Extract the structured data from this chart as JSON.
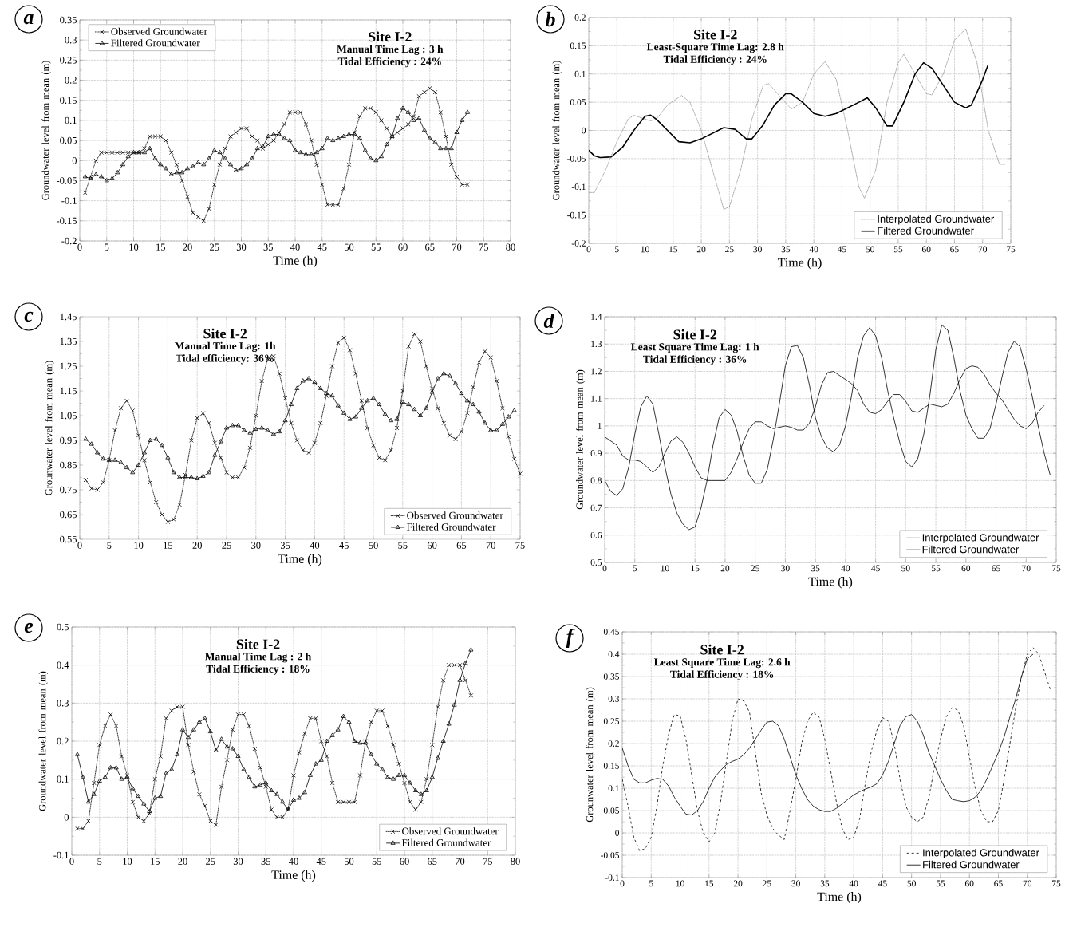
{
  "chart_data": [
    {
      "type": "line",
      "title": "Site I-2",
      "xlabel": "Time (h)",
      "ylabel": "Groundwater level from mean (m)",
      "annotations": [
        "a",
        "Manual Time Lag : 3 h",
        "Tidal Efficiency : 24%"
      ],
      "xlim": [
        0,
        80
      ],
      "ylim": [
        -0.2,
        0.35
      ],
      "xticks": [
        0,
        5,
        10,
        15,
        20,
        25,
        30,
        35,
        40,
        45,
        50,
        55,
        60,
        65,
        70,
        75,
        80
      ],
      "yticks": [
        -0.2,
        -0.15,
        -0.1,
        -0.05,
        0,
        0.05,
        0.1,
        0.15,
        0.2,
        0.25,
        0.3,
        0.35
      ],
      "grid": true,
      "legend": "top left",
      "x": [
        1,
        2,
        3,
        4,
        5,
        6,
        7,
        8,
        9,
        10,
        11,
        12,
        13,
        14,
        15,
        16,
        17,
        18,
        19,
        20,
        21,
        22,
        23,
        24,
        25,
        26,
        27,
        28,
        29,
        30,
        31,
        32,
        33,
        34,
        35,
        36,
        37,
        38,
        39,
        40,
        41,
        42,
        43,
        44,
        45,
        46,
        47,
        48,
        49,
        50,
        51,
        52,
        53,
        54,
        55,
        56,
        57,
        58,
        59,
        60,
        61,
        62,
        63,
        64,
        65,
        66,
        67,
        68,
        69,
        70,
        71,
        72
      ],
      "series": [
        {
          "name": "Observed Groundwater",
          "color": "#000000",
          "marker": "cross",
          "line_style": "dotted",
          "values": [
            -0.08,
            -0.04,
            0.0,
            0.02,
            0.02,
            0.02,
            0.02,
            0.02,
            0.02,
            0.02,
            0.02,
            0.03,
            0.06,
            0.06,
            0.06,
            0.05,
            0.02,
            -0.01,
            -0.05,
            -0.09,
            -0.13,
            -0.14,
            -0.15,
            -0.12,
            -0.06,
            -0.01,
            0.03,
            0.06,
            0.07,
            0.08,
            0.08,
            0.06,
            0.05,
            0.03,
            0.04,
            0.05,
            0.07,
            0.09,
            0.12,
            0.12,
            0.12,
            0.09,
            0.05,
            -0.01,
            -0.06,
            -0.11,
            -0.11,
            -0.11,
            -0.07,
            -0.01,
            0.07,
            0.11,
            0.13,
            0.13,
            0.12,
            0.1,
            0.08,
            0.06,
            0.07,
            0.08,
            0.09,
            0.11,
            0.16,
            0.17,
            0.18,
            0.17,
            0.12,
            0.06,
            -0.01,
            -0.04,
            -0.06,
            -0.06
          ]
        },
        {
          "name": "Filtered Groundwater",
          "color": "#000000",
          "marker": "triangle",
          "line_style": "solid",
          "values": [
            -0.04,
            -0.045,
            -0.035,
            -0.04,
            -0.05,
            -0.045,
            -0.03,
            -0.01,
            0.01,
            0.02,
            0.02,
            0.02,
            0.03,
            0.005,
            -0.01,
            -0.02,
            -0.035,
            -0.03,
            -0.03,
            -0.02,
            -0.015,
            -0.005,
            -0.01,
            0.005,
            0.025,
            0.02,
            0.005,
            -0.01,
            -0.025,
            -0.02,
            -0.01,
            0.005,
            0.03,
            0.035,
            0.06,
            0.065,
            0.065,
            0.055,
            0.05,
            0.025,
            0.02,
            0.015,
            0.015,
            0.02,
            0.03,
            0.055,
            0.05,
            0.055,
            0.06,
            0.065,
            0.065,
            0.055,
            0.025,
            0.005,
            0.0,
            0.01,
            0.04,
            0.06,
            0.105,
            0.13,
            0.12,
            0.1,
            0.105,
            0.075,
            0.055,
            0.045,
            0.03,
            0.03,
            0.03,
            0.07,
            0.1,
            0.12
          ]
        }
      ]
    },
    {
      "type": "line",
      "title": "Site I-2",
      "xlabel": "Time (h)",
      "ylabel": "Groundwater level from mean (m)",
      "annotations": [
        "b",
        "Least-Square Time Lag: 2.8 h",
        "Tidal Efficiency : 24%"
      ],
      "xlim": [
        0,
        75
      ],
      "ylim": [
        -0.2,
        0.2
      ],
      "xticks": [
        0,
        5,
        10,
        15,
        20,
        25,
        30,
        35,
        40,
        45,
        50,
        55,
        60,
        65,
        70,
        75
      ],
      "yticks": [
        -0.2,
        -0.15,
        -0.1,
        -0.05,
        0,
        0.05,
        0.1,
        0.15,
        0.2
      ],
      "grid": true,
      "legend": "bottom right",
      "series": [
        {
          "name": "Interpolated Groundwater",
          "color": "#8c8c8c",
          "marker": "none",
          "line_style": "dotted",
          "x": [
            0,
            1,
            3,
            5,
            7,
            8,
            10,
            11,
            12,
            14,
            16.5,
            18,
            20,
            22,
            24,
            25,
            27,
            29,
            31,
            32,
            34,
            36,
            38,
            40,
            42,
            44,
            46,
            48,
            49,
            51,
            53,
            55,
            56,
            58,
            60,
            61,
            63,
            65,
            67,
            69,
            71,
            73,
            74
          ],
          "values": [
            -0.11,
            -0.11,
            -0.07,
            -0.02,
            0.02,
            0.027,
            0.02,
            0.017,
            0.02,
            0.045,
            0.062,
            0.05,
            0.0,
            -0.07,
            -0.14,
            -0.135,
            -0.07,
            0.02,
            0.08,
            0.083,
            0.06,
            0.038,
            0.05,
            0.1,
            0.122,
            0.09,
            0.0,
            -0.1,
            -0.12,
            -0.07,
            0.05,
            0.12,
            0.135,
            0.1,
            0.065,
            0.063,
            0.1,
            0.16,
            0.18,
            0.12,
            0.0,
            -0.06,
            -0.06
          ]
        },
        {
          "name": "Filtered Groundwater",
          "color": "#000000",
          "marker": "none",
          "line_style": "solid",
          "x": [
            0,
            1,
            2,
            4,
            6,
            8,
            10,
            11,
            12,
            14,
            16,
            18,
            20,
            22,
            24,
            26,
            28,
            29,
            31,
            33,
            35,
            36,
            38,
            40,
            42,
            44,
            46,
            48,
            49.5,
            51,
            53,
            54,
            56,
            58,
            59.5,
            61,
            63,
            65,
            67,
            68,
            70,
            71
          ],
          "values": [
            -0.035,
            -0.045,
            -0.048,
            -0.047,
            -0.03,
            0.0,
            0.025,
            0.027,
            0.02,
            0.0,
            -0.02,
            -0.022,
            -0.015,
            -0.005,
            0.005,
            0.002,
            -0.015,
            -0.015,
            0.01,
            0.045,
            0.065,
            0.065,
            0.05,
            0.03,
            0.025,
            0.03,
            0.04,
            0.05,
            0.058,
            0.04,
            0.008,
            0.008,
            0.05,
            0.1,
            0.12,
            0.11,
            0.08,
            0.05,
            0.04,
            0.045,
            0.09,
            0.117
          ]
        }
      ]
    },
    {
      "type": "line",
      "title": "Site I-2",
      "xlabel": "Time (h)",
      "ylabel": "Grounwater level from mean (m)",
      "annotations": [
        "c",
        "Manual Time Lag: 1h",
        "Tidal efficiency: 36%"
      ],
      "xlim": [
        0,
        75
      ],
      "ylim": [
        0.55,
        1.45
      ],
      "xticks": [
        0,
        5,
        10,
        15,
        20,
        25,
        30,
        35,
        40,
        45,
        50,
        55,
        60,
        65,
        70,
        75
      ],
      "yticks": [
        0.55,
        0.65,
        0.75,
        0.85,
        0.95,
        1.05,
        1.15,
        1.25,
        1.35,
        1.45
      ],
      "grid": "x",
      "legend": "bottom right",
      "series": [
        {
          "name": "Observed Groundwater",
          "color": "#000000",
          "marker": "cross",
          "line_style": "dotted",
          "x": [
            1,
            2,
            3,
            4,
            5,
            6,
            7,
            8,
            9,
            10,
            11,
            12,
            13,
            14,
            15,
            16,
            17,
            18,
            19,
            20,
            21,
            22,
            23,
            24,
            25,
            26,
            27,
            28,
            29,
            30,
            31,
            32,
            33,
            34,
            35,
            36,
            37,
            38,
            39,
            40,
            41,
            42,
            43,
            44,
            45,
            46,
            47,
            48,
            49,
            50,
            51,
            52,
            53,
            54,
            55,
            56,
            57,
            58,
            59,
            60,
            61,
            62,
            63,
            64,
            65,
            66,
            67,
            68,
            69,
            70,
            71,
            72,
            73,
            74,
            75
          ],
          "values": [
            0.79,
            0.755,
            0.75,
            0.78,
            0.87,
            0.99,
            1.08,
            1.11,
            1.07,
            0.97,
            0.87,
            0.78,
            0.7,
            0.65,
            0.62,
            0.63,
            0.69,
            0.81,
            0.95,
            1.04,
            1.06,
            1.02,
            0.94,
            0.88,
            0.82,
            0.8,
            0.8,
            0.84,
            0.92,
            1.05,
            1.19,
            1.28,
            1.29,
            1.22,
            1.12,
            1.02,
            0.95,
            0.91,
            0.9,
            0.94,
            1.02,
            1.13,
            1.25,
            1.345,
            1.365,
            1.315,
            1.22,
            1.11,
            1.0,
            0.93,
            0.88,
            0.87,
            0.91,
            1.0,
            1.15,
            1.33,
            1.38,
            1.35,
            1.25,
            1.16,
            1.08,
            1.02,
            0.97,
            0.955,
            0.985,
            1.06,
            1.165,
            1.265,
            1.31,
            1.285,
            1.19,
            1.08,
            0.965,
            0.875,
            0.815
          ]
        },
        {
          "name": "Filtered Groundwater",
          "color": "#000000",
          "marker": "triangle",
          "line_style": "solid",
          "x": [
            1,
            2,
            3,
            4,
            5,
            6,
            7,
            8,
            9,
            10,
            11,
            12,
            13,
            14,
            15,
            16,
            17,
            18,
            19,
            20,
            21,
            22,
            23,
            24,
            25,
            26,
            27,
            28,
            29,
            30,
            31,
            32,
            33,
            34,
            35,
            36,
            37,
            38,
            39,
            40,
            41,
            42,
            43,
            44,
            45,
            46,
            47,
            48,
            49,
            50,
            51,
            52,
            53,
            54,
            55,
            56,
            57,
            58,
            59,
            60,
            61,
            62,
            63,
            64,
            65,
            66,
            67,
            68,
            69,
            70,
            71,
            72,
            73,
            74
          ],
          "values": [
            0.955,
            0.935,
            0.9,
            0.875,
            0.87,
            0.87,
            0.86,
            0.84,
            0.82,
            0.85,
            0.9,
            0.95,
            0.955,
            0.93,
            0.88,
            0.82,
            0.8,
            0.8,
            0.8,
            0.795,
            0.805,
            0.82,
            0.89,
            0.945,
            1.0,
            1.01,
            1.01,
            0.99,
            0.98,
            0.995,
            1.0,
            0.99,
            0.975,
            0.985,
            1.03,
            1.095,
            1.16,
            1.19,
            1.2,
            1.185,
            1.16,
            1.14,
            1.13,
            1.09,
            1.06,
            1.035,
            1.045,
            1.08,
            1.11,
            1.12,
            1.095,
            1.055,
            1.03,
            1.035,
            1.105,
            1.095,
            1.075,
            1.05,
            1.08,
            1.145,
            1.2,
            1.22,
            1.21,
            1.18,
            1.14,
            1.11,
            1.095,
            1.065,
            1.02,
            0.99,
            0.99,
            1.015,
            1.045,
            1.07
          ]
        }
      ]
    },
    {
      "type": "line",
      "title": "Site I-2",
      "xlabel": "Time (h)",
      "ylabel": "Groundwater level from mean (m)",
      "annotations": [
        "d",
        "Least Square Time Lag: 1 h",
        "Tidal Efficiency : 36%"
      ],
      "xlim": [
        0,
        75
      ],
      "ylim": [
        0.5,
        1.4
      ],
      "xticks": [
        0,
        5,
        10,
        15,
        20,
        25,
        30,
        35,
        40,
        45,
        50,
        55,
        60,
        65,
        70,
        75
      ],
      "yticks": [
        0.5,
        0.6,
        0.7,
        0.8,
        0.9,
        1,
        1.1,
        1.2,
        1.3,
        1.4
      ],
      "grid": true,
      "legend": "bottom right",
      "series": [
        {
          "name": "Interpolated Groundwater",
          "color": "#000000",
          "marker": "none",
          "line_style": "solid",
          "x": [
            0,
            1,
            2,
            3,
            4,
            5,
            6,
            7,
            8,
            9,
            10,
            11,
            12,
            13,
            14,
            15,
            16,
            17,
            18,
            19,
            20,
            21,
            22,
            23,
            24,
            25,
            26,
            27,
            28,
            29,
            30,
            31,
            32,
            33,
            34,
            35,
            36,
            37,
            38,
            39,
            40,
            41,
            42,
            43,
            44,
            45,
            46,
            47,
            48,
            49,
            50,
            51,
            52,
            53,
            54,
            55,
            56,
            57,
            58,
            59,
            60,
            61,
            62,
            63,
            64,
            65,
            66,
            67,
            68,
            69,
            70,
            71,
            72,
            73,
            74
          ],
          "values": [
            0.8,
            0.76,
            0.745,
            0.77,
            0.85,
            0.97,
            1.07,
            1.11,
            1.08,
            0.97,
            0.85,
            0.75,
            0.68,
            0.64,
            0.62,
            0.63,
            0.7,
            0.8,
            0.93,
            1.03,
            1.06,
            1.04,
            0.98,
            0.89,
            0.82,
            0.79,
            0.79,
            0.84,
            0.95,
            1.08,
            1.22,
            1.29,
            1.295,
            1.25,
            1.15,
            1.03,
            0.96,
            0.92,
            0.905,
            0.93,
            1.0,
            1.11,
            1.25,
            1.33,
            1.36,
            1.33,
            1.25,
            1.13,
            1.03,
            0.94,
            0.87,
            0.85,
            0.88,
            0.97,
            1.11,
            1.28,
            1.37,
            1.35,
            1.25,
            1.13,
            1.04,
            0.99,
            0.955,
            0.955,
            0.99,
            1.08,
            1.18,
            1.27,
            1.31,
            1.29,
            1.21,
            1.11,
            1.0,
            0.9,
            0.82
          ]
        },
        {
          "name": "Filtered Groundwater",
          "color": "#000000",
          "marker": "none",
          "line_style": "solid",
          "x": [
            0,
            1,
            2,
            3,
            4,
            5,
            6,
            7,
            8,
            9,
            10,
            11,
            12,
            13,
            14,
            15,
            16,
            17,
            18,
            19,
            20,
            21,
            22,
            23,
            24,
            25,
            26,
            27,
            28,
            29,
            30,
            31,
            32,
            33,
            34,
            35,
            36,
            37,
            38,
            39,
            40,
            41,
            42,
            43,
            44,
            45,
            46,
            47,
            48,
            49,
            50,
            51,
            52,
            53,
            54,
            55,
            56,
            57,
            58,
            59,
            60,
            61,
            62,
            63,
            64,
            65,
            66,
            67,
            68,
            69,
            70,
            71,
            72,
            73
          ],
          "values": [
            0.96,
            0.945,
            0.93,
            0.89,
            0.875,
            0.875,
            0.87,
            0.85,
            0.83,
            0.85,
            0.9,
            0.945,
            0.96,
            0.94,
            0.9,
            0.85,
            0.81,
            0.8,
            0.8,
            0.8,
            0.8,
            0.83,
            0.88,
            0.94,
            0.99,
            1.015,
            1.015,
            1.0,
            0.99,
            0.995,
            1.0,
            0.995,
            0.985,
            0.985,
            1.01,
            1.07,
            1.15,
            1.195,
            1.2,
            1.185,
            1.17,
            1.155,
            1.13,
            1.08,
            1.05,
            1.045,
            1.06,
            1.09,
            1.115,
            1.115,
            1.09,
            1.055,
            1.05,
            1.065,
            1.08,
            1.075,
            1.07,
            1.08,
            1.12,
            1.17,
            1.21,
            1.22,
            1.215,
            1.19,
            1.15,
            1.12,
            1.095,
            1.06,
            1.025,
            1.0,
            0.99,
            1.01,
            1.05,
            1.075
          ]
        }
      ]
    },
    {
      "type": "line",
      "title": "Site I-2",
      "xlabel": "Time (h)",
      "ylabel": "Groundwater level from mean (m)",
      "annotations": [
        "e",
        "Manual Time Lag : 2 h",
        "Tidal Efficiency : 18%"
      ],
      "xlim": [
        0,
        80
      ],
      "ylim": [
        -0.1,
        0.5
      ],
      "xticks": [
        0,
        5,
        10,
        15,
        20,
        25,
        30,
        35,
        40,
        45,
        50,
        55,
        60,
        65,
        70,
        75,
        80
      ],
      "yticks": [
        -0.1,
        0,
        0.1,
        0.2,
        0.3,
        0.4,
        0.5
      ],
      "grid": true,
      "legend": "bottom right",
      "x": [
        1,
        2,
        3,
        4,
        5,
        6,
        7,
        8,
        9,
        10,
        11,
        12,
        13,
        14,
        15,
        16,
        17,
        18,
        19,
        20,
        21,
        22,
        23,
        24,
        25,
        26,
        27,
        28,
        29,
        30,
        31,
        32,
        33,
        34,
        35,
        36,
        37,
        38,
        39,
        40,
        41,
        42,
        43,
        44,
        45,
        46,
        47,
        48,
        49,
        50,
        51,
        52,
        53,
        54,
        55,
        56,
        57,
        58,
        59,
        60,
        61,
        62,
        63,
        64,
        65,
        66,
        67,
        68,
        69,
        70,
        71,
        72
      ],
      "series": [
        {
          "name": "Observed Groundwater",
          "color": "#000000",
          "marker": "cross",
          "line_style": "dotted",
          "values": [
            -0.03,
            -0.03,
            -0.01,
            0.09,
            0.19,
            0.24,
            0.27,
            0.24,
            0.16,
            0.11,
            0.04,
            0.0,
            -0.01,
            0.01,
            0.1,
            0.16,
            0.26,
            0.28,
            0.29,
            0.29,
            0.19,
            0.12,
            0.06,
            0.03,
            -0.01,
            -0.02,
            0.08,
            0.15,
            0.23,
            0.27,
            0.27,
            0.24,
            0.18,
            0.13,
            0.08,
            0.02,
            0.0,
            0.0,
            0.02,
            0.11,
            0.17,
            0.22,
            0.26,
            0.26,
            0.2,
            0.16,
            0.09,
            0.04,
            0.04,
            0.04,
            0.04,
            0.11,
            0.2,
            0.25,
            0.28,
            0.28,
            0.24,
            0.19,
            0.14,
            0.09,
            0.04,
            0.02,
            0.04,
            0.1,
            0.19,
            0.29,
            0.36,
            0.4,
            0.4,
            0.4,
            0.36,
            0.32
          ]
        },
        {
          "name": "Filtered Groundwater",
          "color": "#000000",
          "marker": "triangle",
          "line_style": "solid",
          "values": [
            0.165,
            0.105,
            0.04,
            0.06,
            0.095,
            0.105,
            0.13,
            0.13,
            0.1,
            0.105,
            0.075,
            0.055,
            0.035,
            0.015,
            0.05,
            0.055,
            0.115,
            0.125,
            0.165,
            0.23,
            0.21,
            0.23,
            0.25,
            0.26,
            0.225,
            0.175,
            0.205,
            0.185,
            0.18,
            0.16,
            0.125,
            0.105,
            0.08,
            0.085,
            0.09,
            0.07,
            0.06,
            0.04,
            0.02,
            0.045,
            0.05,
            0.065,
            0.11,
            0.14,
            0.15,
            0.2,
            0.215,
            0.23,
            0.265,
            0.25,
            0.2,
            0.195,
            0.195,
            0.165,
            0.14,
            0.125,
            0.105,
            0.1,
            0.11,
            0.11,
            0.09,
            0.07,
            0.06,
            0.07,
            0.105,
            0.155,
            0.2,
            0.245,
            0.295,
            0.36,
            0.405,
            0.44
          ]
        }
      ]
    },
    {
      "type": "line",
      "title": "Site I-2",
      "xlabel": "Time (h)",
      "ylabel": "Grounwater level from mean (m)",
      "annotations": [
        "f",
        "Least Square Time Lag: 2.6 h",
        "Tidal Efficiency : 18%"
      ],
      "xlim": [
        0,
        75
      ],
      "ylim": [
        -0.1,
        0.45
      ],
      "xticks": [
        0,
        5,
        10,
        15,
        20,
        25,
        30,
        35,
        40,
        45,
        50,
        55,
        60,
        65,
        70,
        75
      ],
      "yticks": [
        -0.1,
        -0.05,
        0,
        0.05,
        0.1,
        0.15,
        0.2,
        0.25,
        0.3,
        0.35,
        0.4,
        0.45
      ],
      "grid": true,
      "legend": "bottom right",
      "series": [
        {
          "name": "Interpolated Groundwater",
          "color": "#000000",
          "marker": "none",
          "line_style": "dashed",
          "x": [
            0,
            1,
            2,
            3,
            4,
            5,
            6,
            7,
            8,
            9,
            10,
            11,
            12,
            13,
            14,
            15,
            16,
            17,
            18,
            19,
            20,
            21,
            22,
            23,
            24,
            25,
            26,
            27,
            28,
            29,
            30,
            31,
            32,
            33,
            34,
            35,
            36,
            37,
            38,
            39,
            40,
            41,
            42,
            43,
            44,
            45,
            46,
            47,
            48,
            49,
            50,
            51,
            52,
            53,
            54,
            55,
            56,
            57,
            58,
            59,
            60,
            61,
            62,
            63,
            64,
            65,
            66,
            67,
            68,
            69,
            70,
            71,
            72,
            73,
            74
          ],
          "values": [
            0.12,
            0.06,
            -0.01,
            -0.04,
            -0.035,
            -0.01,
            0.06,
            0.15,
            0.22,
            0.265,
            0.262,
            0.21,
            0.13,
            0.05,
            0.0,
            -0.02,
            0.0,
            0.07,
            0.16,
            0.25,
            0.3,
            0.295,
            0.27,
            0.18,
            0.09,
            0.04,
            0.01,
            -0.005,
            -0.015,
            0.05,
            0.12,
            0.2,
            0.25,
            0.27,
            0.26,
            0.21,
            0.14,
            0.07,
            0.01,
            -0.015,
            -0.01,
            0.03,
            0.11,
            0.18,
            0.23,
            0.258,
            0.25,
            0.2,
            0.12,
            0.06,
            0.035,
            0.025,
            0.035,
            0.08,
            0.15,
            0.21,
            0.26,
            0.28,
            0.275,
            0.24,
            0.17,
            0.1,
            0.05,
            0.025,
            0.025,
            0.05,
            0.12,
            0.2,
            0.28,
            0.35,
            0.4,
            0.415,
            0.4,
            0.36,
            0.32
          ]
        },
        {
          "name": "Filtered Groundwater",
          "color": "#000000",
          "marker": "none",
          "line_style": "solid",
          "x": [
            0,
            1,
            2,
            3,
            4,
            5,
            6,
            7,
            8,
            9,
            10,
            11,
            12,
            13,
            14,
            15,
            16,
            17,
            18,
            19,
            20,
            21,
            22,
            23,
            24,
            25,
            26,
            27,
            28,
            29,
            30,
            31,
            32,
            33,
            34,
            35,
            36,
            37,
            38,
            39,
            40,
            41,
            42,
            43,
            44,
            45,
            46,
            47,
            48,
            49,
            50,
            51,
            52,
            53,
            54,
            55,
            56,
            57,
            58,
            59,
            60,
            61,
            62,
            63,
            64,
            65,
            66,
            67,
            68,
            69,
            70,
            71
          ],
          "values": [
            0.19,
            0.15,
            0.12,
            0.112,
            0.112,
            0.118,
            0.122,
            0.12,
            0.105,
            0.08,
            0.06,
            0.042,
            0.04,
            0.05,
            0.07,
            0.1,
            0.125,
            0.14,
            0.153,
            0.16,
            0.165,
            0.175,
            0.19,
            0.21,
            0.23,
            0.248,
            0.25,
            0.24,
            0.21,
            0.17,
            0.13,
            0.1,
            0.075,
            0.06,
            0.052,
            0.048,
            0.048,
            0.055,
            0.065,
            0.075,
            0.085,
            0.092,
            0.098,
            0.103,
            0.11,
            0.13,
            0.16,
            0.2,
            0.24,
            0.26,
            0.265,
            0.25,
            0.22,
            0.18,
            0.15,
            0.12,
            0.095,
            0.075,
            0.072,
            0.07,
            0.072,
            0.08,
            0.095,
            0.12,
            0.15,
            0.18,
            0.215,
            0.26,
            0.3,
            0.35,
            0.39,
            0.4
          ]
        }
      ]
    }
  ]
}
